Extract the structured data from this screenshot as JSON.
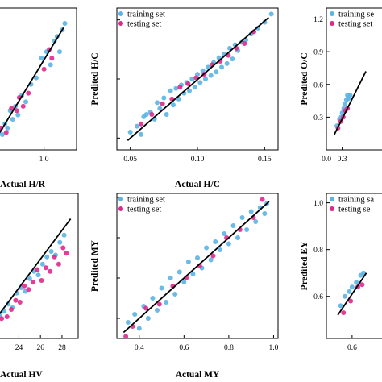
{
  "chart_data": [
    {
      "id": "hr",
      "type": "scatter",
      "xlabel": "Actual H/R",
      "ylabel": "",
      "xlim": [
        0.6,
        1.25
      ],
      "ylim": [
        0.6,
        1.25
      ],
      "xticks": [
        1.0
      ],
      "tick_labels": [
        "1.0"
      ],
      "legend": {
        "entries": []
      },
      "fit_line": [
        [
          0.62,
          0.64
        ],
        [
          1.15,
          1.16
        ]
      ],
      "series": [
        {
          "name": "training set",
          "color": "#5ab4e6",
          "x": [
            0.62,
            0.64,
            0.66,
            0.68,
            0.7,
            0.72,
            0.74,
            0.76,
            0.78,
            0.8,
            0.83,
            0.86,
            0.9,
            0.94,
            0.98,
            1.02,
            1.05,
            1.08,
            1.1,
            1.12,
            1.14,
            1.16
          ],
          "y": [
            0.66,
            0.62,
            0.69,
            0.67,
            0.72,
            0.7,
            0.78,
            0.74,
            0.8,
            0.76,
            0.85,
            0.82,
            0.9,
            0.93,
            1.02,
            1.05,
            0.99,
            1.1,
            1.12,
            1.05,
            1.15,
            1.18
          ]
        },
        {
          "name": "testing set",
          "color": "#e0288c",
          "x": [
            0.63,
            0.67,
            0.71,
            0.75,
            0.79,
            0.81,
            0.84,
            0.88,
            1.0,
            1.04,
            1.06
          ],
          "y": [
            0.6,
            0.7,
            0.68,
            0.79,
            0.78,
            0.84,
            0.8,
            0.86,
            0.97,
            1.06,
            1.02
          ]
        }
      ]
    },
    {
      "id": "hc",
      "type": "scatter",
      "xlabel": "Actual H/C",
      "ylabel": "Predited H/C",
      "xlim": [
        0.04,
        0.16
      ],
      "ylim": [
        0.04,
        0.16
      ],
      "xticks": [
        0.05,
        0.1,
        0.15
      ],
      "yticks": [
        0.05,
        0.1,
        0.15
      ],
      "tick_labels": [
        "0.05",
        "0.10",
        "0.15"
      ],
      "legend": {
        "entries": [
          "training set",
          "testing set"
        ]
      },
      "fit_line": [
        [
          0.048,
          0.048
        ],
        [
          0.153,
          0.152
        ]
      ],
      "series": [
        {
          "name": "training set",
          "color": "#5ab4e6",
          "x": [
            0.05,
            0.055,
            0.058,
            0.06,
            0.062,
            0.065,
            0.068,
            0.07,
            0.072,
            0.075,
            0.077,
            0.08,
            0.082,
            0.084,
            0.086,
            0.088,
            0.09,
            0.092,
            0.094,
            0.096,
            0.098,
            0.1,
            0.102,
            0.104,
            0.106,
            0.108,
            0.11,
            0.112,
            0.114,
            0.116,
            0.118,
            0.12,
            0.122,
            0.124,
            0.126,
            0.128,
            0.13,
            0.133,
            0.136,
            0.14,
            0.145,
            0.15,
            0.155
          ],
          "y": [
            0.055,
            0.06,
            0.053,
            0.068,
            0.07,
            0.072,
            0.066,
            0.08,
            0.075,
            0.084,
            0.07,
            0.09,
            0.078,
            0.092,
            0.083,
            0.095,
            0.088,
            0.097,
            0.09,
            0.1,
            0.093,
            0.104,
            0.097,
            0.107,
            0.1,
            0.11,
            0.103,
            0.114,
            0.106,
            0.118,
            0.11,
            0.121,
            0.113,
            0.126,
            0.117,
            0.129,
            0.124,
            0.131,
            0.133,
            0.138,
            0.143,
            0.148,
            0.155
          ]
        },
        {
          "name": "testing set",
          "color": "#e0288c",
          "x": [
            0.058,
            0.066,
            0.074,
            0.081,
            0.087,
            0.093,
            0.099,
            0.105,
            0.111,
            0.117,
            0.123,
            0.129,
            0.135,
            0.142
          ],
          "y": [
            0.062,
            0.07,
            0.079,
            0.083,
            0.093,
            0.096,
            0.101,
            0.104,
            0.112,
            0.115,
            0.12,
            0.126,
            0.13,
            0.14
          ]
        }
      ]
    },
    {
      "id": "oc",
      "type": "scatter",
      "xlabel": "",
      "ylabel": "Predited O/C",
      "xlim": [
        0.0,
        1.3
      ],
      "ylim": [
        0.0,
        1.3
      ],
      "xticks": [
        0.0,
        0.3
      ],
      "yticks": [
        0.3,
        0.6,
        0.9,
        1.2
      ],
      "tick_labels": [
        "0.0",
        "0.3",
        "0.3",
        "0.6",
        "0.9",
        "1.2"
      ],
      "legend": {
        "entries": [
          "training se",
          "testing set"
        ]
      },
      "fit_line": [
        [
          0.15,
          0.14
        ],
        [
          0.75,
          0.72
        ]
      ],
      "series": [
        {
          "name": "training se",
          "color": "#5ab4e6",
          "x": [
            0.2,
            0.25,
            0.28,
            0.3,
            0.33,
            0.35,
            0.38,
            0.4,
            0.42,
            0.45
          ],
          "y": [
            0.22,
            0.28,
            0.3,
            0.34,
            0.38,
            0.42,
            0.46,
            0.5,
            0.47,
            0.5
          ]
        },
        {
          "name": "testing set",
          "color": "#e0288c",
          "x": [
            0.22,
            0.27,
            0.32,
            0.36,
            0.4
          ],
          "y": [
            0.2,
            0.26,
            0.3,
            0.36,
            0.38
          ]
        }
      ]
    },
    {
      "id": "hv",
      "type": "scatter",
      "xlabel": "Actual HV",
      "ylabel": "",
      "xlim": [
        21.5,
        29.5
      ],
      "ylim": [
        21.5,
        29.5
      ],
      "xticks": [
        24,
        26,
        28
      ],
      "tick_labels": [
        "24",
        "26",
        "28"
      ],
      "legend": {
        "entries": []
      },
      "fit_line": [
        [
          21.5,
          22.3
        ],
        [
          28.8,
          28.1
        ]
      ],
      "series": [
        {
          "name": "training set",
          "color": "#5ab4e6",
          "x": [
            21.8,
            22.2,
            22.6,
            23,
            23.4,
            23.8,
            24.2,
            24.6,
            25,
            25.4,
            25.8,
            26.2,
            26.6,
            27,
            27.4,
            27.8,
            28.2
          ],
          "y": [
            22.5,
            22.8,
            23,
            23.4,
            23.2,
            24,
            24.3,
            24.1,
            24.8,
            25.2,
            25,
            25.6,
            26,
            26.3,
            26.1,
            26.8,
            27.2
          ]
        },
        {
          "name": "testing set",
          "color": "#e0288c",
          "x": [
            22,
            22.4,
            22.9,
            23.3,
            23.7,
            24.1,
            24.5,
            24.9,
            25.3,
            25.7,
            26.1,
            26.5,
            26.9,
            27.3,
            27.7,
            28.1,
            28.4
          ],
          "y": [
            22.2,
            22.6,
            22.7,
            23.1,
            23.6,
            23.5,
            24.4,
            24.2,
            24.6,
            25.3,
            24.7,
            25.4,
            25.2,
            26,
            25.6,
            26.5,
            26.2
          ]
        }
      ]
    },
    {
      "id": "my",
      "type": "scatter",
      "xlabel": "Actual MY",
      "ylabel": "Predited MY",
      "xlim": [
        0.3,
        1.02
      ],
      "ylim": [
        0.3,
        1.02
      ],
      "xticks": [
        0.4,
        0.6,
        0.8,
        1.0
      ],
      "yticks": [
        0.4,
        0.6,
        0.8,
        1.0
      ],
      "tick_labels": [
        "0.4",
        "0.6",
        "0.8",
        "1.0"
      ],
      "legend": {
        "entries": [
          "training set",
          "testing set"
        ]
      },
      "fit_line": [
        [
          0.33,
          0.33
        ],
        [
          0.98,
          0.98
        ]
      ],
      "series": [
        {
          "name": "training set",
          "color": "#5ab4e6",
          "x": [
            0.35,
            0.38,
            0.4,
            0.42,
            0.44,
            0.46,
            0.48,
            0.5,
            0.52,
            0.54,
            0.56,
            0.58,
            0.6,
            0.62,
            0.64,
            0.66,
            0.68,
            0.7,
            0.72,
            0.74,
            0.76,
            0.78,
            0.8,
            0.82,
            0.84,
            0.86,
            0.88,
            0.9,
            0.92,
            0.94,
            0.96,
            0.97
          ],
          "y": [
            0.38,
            0.42,
            0.35,
            0.46,
            0.4,
            0.5,
            0.44,
            0.55,
            0.48,
            0.6,
            0.52,
            0.63,
            0.58,
            0.68,
            0.62,
            0.7,
            0.65,
            0.75,
            0.69,
            0.78,
            0.74,
            0.82,
            0.77,
            0.86,
            0.8,
            0.9,
            0.84,
            0.93,
            0.88,
            0.95,
            0.92,
            0.97
          ]
        },
        {
          "name": "testing set",
          "color": "#e0288c",
          "x": [
            0.34,
            0.37,
            0.43,
            0.49,
            0.55,
            0.61,
            0.67,
            0.73,
            0.79,
            0.85,
            0.91,
            0.95
          ],
          "y": [
            0.31,
            0.36,
            0.45,
            0.47,
            0.56,
            0.6,
            0.66,
            0.71,
            0.8,
            0.84,
            0.9,
            0.99
          ]
        }
      ]
    },
    {
      "id": "ey",
      "type": "scatter",
      "xlabel": "",
      "ylabel": "Predited EY",
      "xlim": [
        0.42,
        0.9
      ],
      "ylim": [
        0.42,
        1.04
      ],
      "xticks": [
        0.6
      ],
      "yticks": [
        0.6,
        0.8,
        1.0
      ],
      "tick_labels": [
        "0.6",
        "0.6",
        "0.8",
        "1.0"
      ],
      "legend": {
        "entries": [
          "training sa",
          "testing se"
        ]
      },
      "fit_line": [
        [
          0.5,
          0.52
        ],
        [
          0.7,
          0.7
        ]
      ],
      "series": [
        {
          "name": "training sa",
          "color": "#5ab4e6",
          "x": [
            0.52,
            0.55,
            0.58,
            0.6,
            0.63,
            0.66,
            0.68
          ],
          "y": [
            0.56,
            0.6,
            0.62,
            0.64,
            0.66,
            0.69,
            0.7
          ]
        },
        {
          "name": "testing se",
          "color": "#e0288c",
          "x": [
            0.54,
            0.59,
            0.64,
            0.67
          ],
          "y": [
            0.53,
            0.58,
            0.64,
            0.65
          ]
        }
      ]
    }
  ]
}
